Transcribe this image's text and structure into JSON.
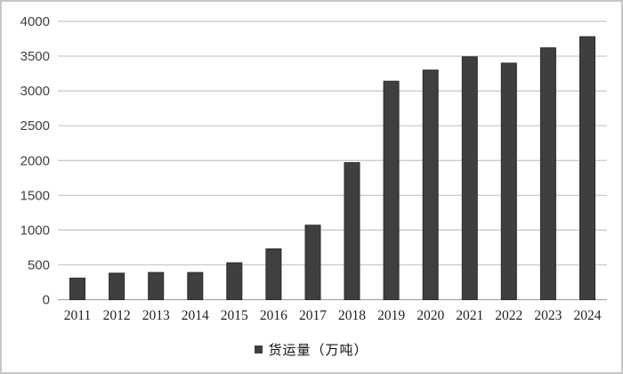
{
  "chart_data": {
    "type": "bar",
    "title": "",
    "xlabel": "",
    "ylabel": "",
    "categories": [
      "2011",
      "2012",
      "2013",
      "2014",
      "2015",
      "2016",
      "2017",
      "2018",
      "2019",
      "2020",
      "2021",
      "2022",
      "2023",
      "2024"
    ],
    "values": [
      310,
      380,
      390,
      390,
      530,
      730,
      1070,
      1970,
      3140,
      3300,
      3490,
      3400,
      3620,
      3780
    ],
    "ylim": [
      0,
      4000
    ],
    "ytick_step": 500,
    "ytick_labels": [
      "0",
      "500",
      "1000",
      "1500",
      "2000",
      "2500",
      "3000",
      "3500",
      "4000"
    ],
    "grid": "horizontal",
    "legend": {
      "position": "bottom-center",
      "marker": "filled-square",
      "label": "货运量（万吨）"
    }
  },
  "colors": {
    "bar_fill": "#3f3f3f",
    "bar_edge": "#2b2b2b",
    "gridline": "#c6c6c6",
    "axis_line": "#a6a6a6",
    "ytick_text": "#404040",
    "xtick_text": "#1f1f1f",
    "frame_border": "#c6c6c6",
    "background": "#ffffff"
  }
}
